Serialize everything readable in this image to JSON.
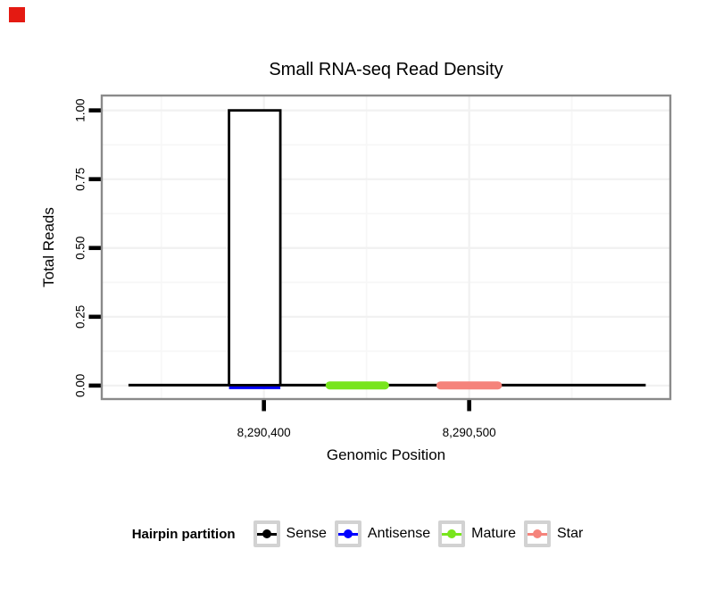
{
  "ui": {
    "marker_color": "#E41A12",
    "panel_border_color": "#8A8A8A",
    "grid_major_color": "#F1F1F1",
    "grid_minor_color": "#F7F7F7",
    "tick_color": "#000000",
    "background": "#FFFFFF"
  },
  "chart_data": {
    "type": "line",
    "title": "Small RNA-seq Read Density",
    "xlabel": "Genomic Position",
    "ylabel": "Total Reads",
    "x_domain": [
      8290321,
      8290598
    ],
    "y_domain": [
      -0.049,
      1.054
    ],
    "x_ticks": [
      {
        "value": 8290400,
        "label": "8,290,400"
      },
      {
        "value": 8290500,
        "label": "8,290,500"
      }
    ],
    "x_minor_ticks": [
      8290350,
      8290450,
      8290550
    ],
    "y_ticks": [
      {
        "value": 0.0,
        "label": "0.00"
      },
      {
        "value": 0.25,
        "label": "0.25"
      },
      {
        "value": 0.5,
        "label": "0.50"
      },
      {
        "value": 0.75,
        "label": "0.75"
      },
      {
        "value": 1.0,
        "label": "1.00"
      }
    ],
    "y_minor_ticks": [
      0.125,
      0.375,
      0.625,
      0.875
    ],
    "grid": "major+minor",
    "legend_position": "bottom",
    "legend_title": "Hairpin partition",
    "series": [
      {
        "name": "Sense",
        "color": "#000000",
        "type": "step",
        "baseline": [
          8290334,
          8290586
        ],
        "peak": {
          "start": 8290383,
          "end": 8290408,
          "height": 1.0
        }
      },
      {
        "name": "Antisense",
        "color": "#0000FF",
        "type": "segment",
        "segments": [
          {
            "start": 8290383,
            "end": 8290408,
            "y": 0
          }
        ]
      },
      {
        "name": "Mature",
        "color": "#78E51D",
        "type": "segment",
        "segments": [
          {
            "start": 8290432,
            "end": 8290459,
            "y": 0
          }
        ]
      },
      {
        "name": "Star",
        "color": "#F5837B",
        "type": "segment",
        "segments": [
          {
            "start": 8290486,
            "end": 8290514,
            "y": 0
          }
        ]
      }
    ]
  }
}
